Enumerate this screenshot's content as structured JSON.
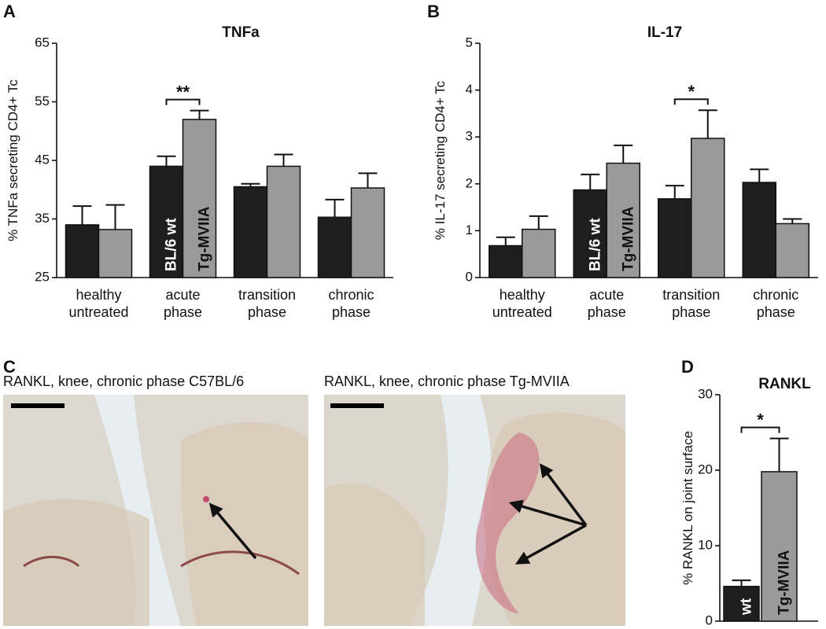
{
  "panel_labels": [
    "A",
    "B",
    "C",
    "D"
  ],
  "images": [
    {
      "caption": "RANKL, knee, chronic phase C57BL/6"
    },
    {
      "caption": "RANKL, knee, chronic phase Tg-MVIIA"
    }
  ],
  "chart_data": [
    {
      "type": "grouped-bar",
      "title": "TNFa",
      "y_label": "% TNFa secreting CD4+ Tc",
      "categories": [
        "healthy untreated",
        "acute phase",
        "transition phase",
        "chronic phase"
      ],
      "series": [
        {
          "name": "BL/6 wt",
          "color": "#1e1e1e",
          "values": [
            34,
            44,
            40.5,
            35.3
          ],
          "errors": [
            3.2,
            1.7,
            0.5,
            3
          ]
        },
        {
          "name": "Tg-MVIIA",
          "color": "#9a9a9a",
          "values": [
            33.2,
            52,
            44,
            40.3
          ],
          "errors": [
            4.2,
            1.5,
            2,
            2.5
          ]
        }
      ],
      "legend": {
        "category": "acute phase"
      },
      "significance": [
        {
          "label": "**",
          "categories": [
            "acute phase"
          ]
        }
      ],
      "ylim": [
        25,
        65
      ],
      "yticks": [
        25,
        35,
        45,
        55,
        65
      ]
    },
    {
      "type": "grouped-bar",
      "title": "IL-17",
      "y_label": "% IL-17 secreting CD4+ Tc",
      "categories": [
        "healthy untreated",
        "acute phase",
        "transition phase",
        "chronic phase"
      ],
      "series": [
        {
          "name": "BL/6 wt",
          "color": "#1e1e1e",
          "values": [
            0.68,
            1.87,
            1.68,
            2.03
          ],
          "errors": [
            0.18,
            0.33,
            0.28,
            0.28
          ]
        },
        {
          "name": "Tg-MVIIA",
          "color": "#9a9a9a",
          "values": [
            1.03,
            2.44,
            2.97,
            1.15
          ],
          "errors": [
            0.28,
            0.38,
            0.6,
            0.1
          ]
        }
      ],
      "legend": {
        "category": "acute phase"
      },
      "significance": [
        {
          "label": "*",
          "categories": [
            "transition phase"
          ]
        }
      ],
      "ylim": [
        0,
        5
      ],
      "yticks": [
        0,
        1,
        2,
        3,
        4,
        5
      ]
    },
    {
      "type": "bar",
      "title": "RANKL",
      "y_label": "% RANKL on joint surface",
      "categories": [
        "wt",
        "Tg-MVIIA"
      ],
      "colors": [
        "#1e1e1e",
        "#9a9a9a"
      ],
      "values": [
        4.6,
        19.8
      ],
      "errors": [
        0.8,
        4.4
      ],
      "significance": [
        {
          "label": "*",
          "categories": [
            "wt",
            "Tg-MVIIA"
          ]
        }
      ],
      "ylim": [
        0,
        30
      ],
      "yticks": [
        0,
        10,
        20,
        30
      ]
    }
  ]
}
